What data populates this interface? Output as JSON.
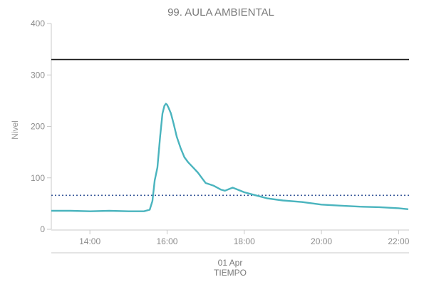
{
  "chart_data": {
    "type": "line",
    "title": "99. AULA AMBIENTAL",
    "xlabel": "TIEMPO",
    "ylabel": "Nivel",
    "date_label": "01 Apr",
    "ylim": [
      0,
      400
    ],
    "y_ticks": [
      0,
      100,
      200,
      300,
      400
    ],
    "x_ticks": [
      {
        "t": 14,
        "label": "14:00"
      },
      {
        "t": 16,
        "label": "16:00"
      },
      {
        "t": 18,
        "label": "18:00"
      },
      {
        "t": 20,
        "label": "20:00"
      },
      {
        "t": 22,
        "label": "22:00"
      }
    ],
    "xlim": [
      13.0,
      22.27
    ],
    "reference_lines": [
      {
        "value": 330,
        "style": "solid",
        "color": "#1a1a1a"
      },
      {
        "value": 66,
        "style": "dotted",
        "color": "#3a5a9a"
      }
    ],
    "series": [
      {
        "color": "#4ab4be",
        "x": [
          13.0,
          13.5,
          14.0,
          14.5,
          15.0,
          15.4,
          15.55,
          15.62,
          15.68,
          15.75,
          15.82,
          15.88,
          15.93,
          15.97,
          16.0,
          16.04,
          16.1,
          16.17,
          16.25,
          16.35,
          16.45,
          16.55,
          16.7,
          16.8,
          16.9,
          17.0,
          17.2,
          17.4,
          17.5,
          17.6,
          17.7,
          17.8,
          18.0,
          18.3,
          18.6,
          19.0,
          19.5,
          20.0,
          20.5,
          21.0,
          21.5,
          22.0,
          22.25
        ],
        "y": [
          36,
          36,
          35,
          36,
          35,
          35,
          38,
          55,
          95,
          120,
          180,
          225,
          240,
          244,
          242,
          236,
          225,
          205,
          180,
          158,
          140,
          130,
          118,
          110,
          100,
          90,
          85,
          77,
          75,
          78,
          81,
          78,
          72,
          66,
          60,
          56,
          53,
          48,
          46,
          44,
          43,
          41,
          39
        ]
      }
    ]
  }
}
